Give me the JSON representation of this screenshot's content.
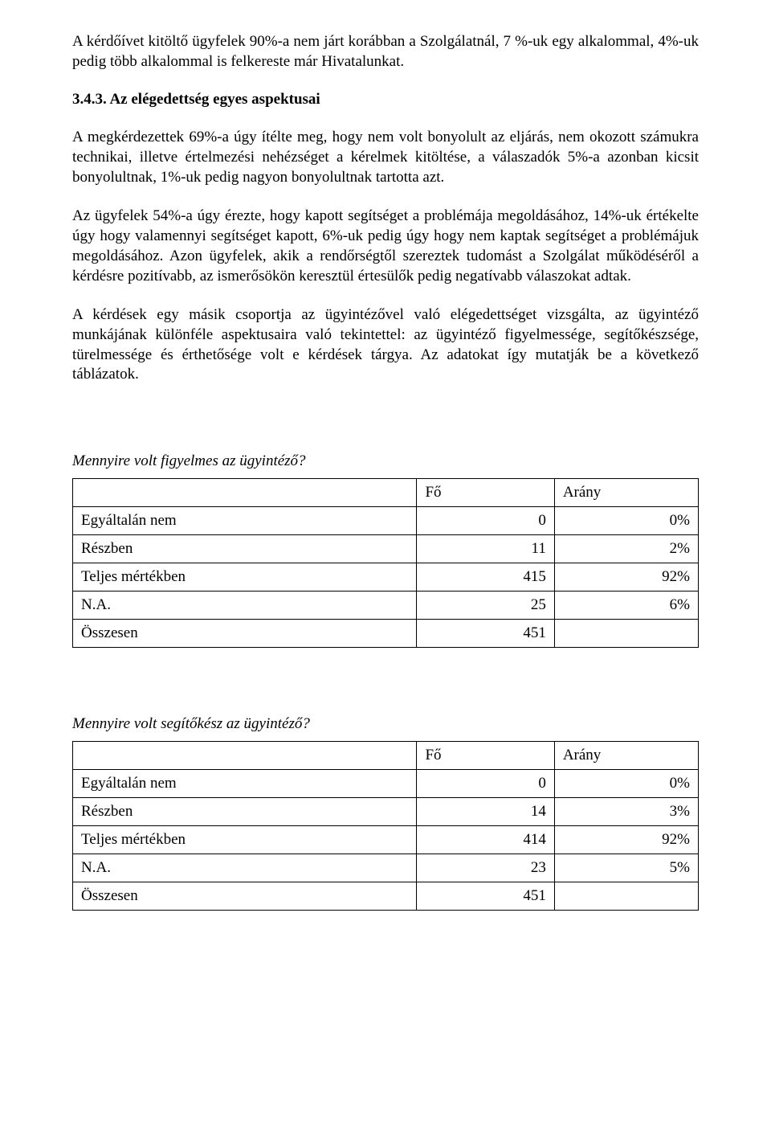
{
  "paragraphs": {
    "p1": "A kérdőívet kitöltő ügyfelek 90%-a nem járt korábban a Szolgálatnál, 7 %-uk egy alkalommal, 4%-uk pedig több alkalommal is felkereste már Hivatalunkat.",
    "heading": "3.4.3. Az elégedettség egyes aspektusai",
    "p2": "A megkérdezettek 69%-a úgy ítélte meg, hogy nem volt bonyolult az eljárás, nem okozott  számukra technikai, illetve értelmezési nehézséget a kérelmek kitöltése, a válaszadók 5%-a azonban kicsit bonyolultnak, 1%-uk pedig nagyon bonyolultnak tartotta azt.",
    "p3": "Az ügyfelek 54%-a úgy érezte, hogy kapott segítséget a problémája megoldásához, 14%-uk értékelte úgy hogy valamennyi segítséget kapott, 6%-uk pedig úgy hogy nem kaptak segítséget a problémájuk megoldásához. Azon ügyfelek, akik a rendőrségtől szereztek tudomást a  Szolgálat működéséről a kérdésre pozitívabb, az ismerősökön keresztül értesülők pedig negatívabb válaszokat adtak.",
    "p4": "A kérdések egy másik csoportja az ügyintézővel való elégedettséget vizsgálta, az ügyintéző munkájának különféle aspektusaira való tekintettel: az ügyintéző figyelmessége, segítőkészsége, türelmessége és érthetősége volt e kérdések tárgya. Az adatokat így mutatják be a következő táblázatok."
  },
  "table1": {
    "caption": "Mennyire volt figyelmes az ügyintéző?",
    "headers": {
      "c1": "",
      "c2": "Fő",
      "c3": "Arány"
    },
    "rows": [
      {
        "label": "Egyáltalán nem",
        "fo": "0",
        "arany": "0%"
      },
      {
        "label": "Részben",
        "fo": "11",
        "arany": "2%"
      },
      {
        "label": "Teljes mértékben",
        "fo": "415",
        "arany": "92%"
      },
      {
        "label": "N.A.",
        "fo": "25",
        "arany": "6%"
      },
      {
        "label": "Összesen",
        "fo": "451",
        "arany": ""
      }
    ]
  },
  "table2": {
    "caption": "Mennyire volt segítőkész az ügyintéző?",
    "headers": {
      "c1": "",
      "c2": "Fő",
      "c3": "Arány"
    },
    "rows": [
      {
        "label": "Egyáltalán nem",
        "fo": "0",
        "arany": "0%"
      },
      {
        "label": "Részben",
        "fo": "14",
        "arany": "3%"
      },
      {
        "label": "Teljes mértékben",
        "fo": "414",
        "arany": "92%"
      },
      {
        "label": "N.A.",
        "fo": "23",
        "arany": "5%"
      },
      {
        "label": "Összesen",
        "fo": "451",
        "arany": ""
      }
    ]
  }
}
